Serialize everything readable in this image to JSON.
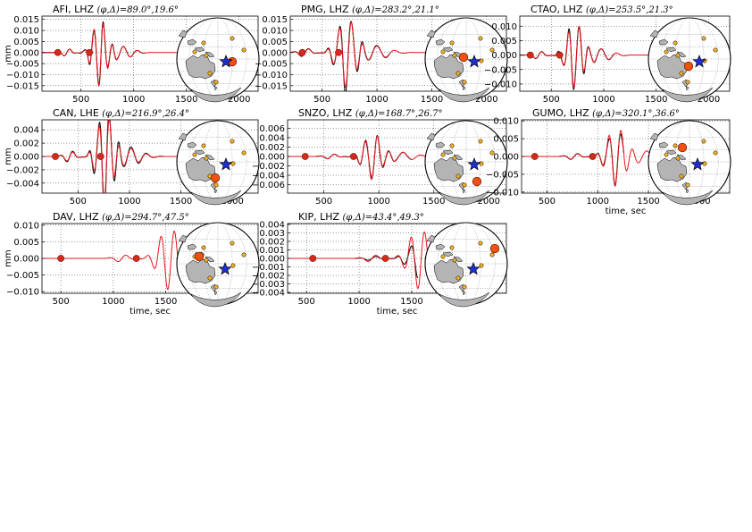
{
  "chart_data": [
    {
      "type": "line",
      "station": "AFI",
      "channel": "LHZ",
      "azimuth": "89.0",
      "distance": "19.6",
      "title_math": "(φ,Δ)=89.0°,19.6°",
      "ylabel": "mm",
      "xlabel": "",
      "xlim": [
        130,
        2180
      ],
      "ylim": [
        -0.0175,
        0.0165
      ],
      "xticks": [
        500,
        1000,
        1500,
        2000
      ],
      "yticks": [
        -0.015,
        -0.01,
        -0.005,
        0.0,
        0.005,
        0.01,
        0.015
      ],
      "ytick_labels": [
        "−0.015",
        "−0.010",
        "−0.005",
        "0.000",
        "0.005",
        "0.010",
        "0.015"
      ],
      "picks": [
        280,
        580
      ],
      "trace": {
        "onset": 600,
        "peak": 0.015,
        "period": 90,
        "end": 1090,
        "red_end": 2000,
        "black_scale": 1.0,
        "black_end": 1090
      }
    },
    {
      "type": "line",
      "station": "PMG",
      "channel": "LHZ",
      "azimuth": "283.2",
      "distance": "21.1",
      "title_math": "(φ,Δ)=283.2°,21.1°",
      "ylabel": "",
      "xlabel": "",
      "xlim": [
        210,
        2180
      ],
      "ylim": [
        -0.0175,
        0.0165
      ],
      "xticks": [
        500,
        1000,
        1500,
        2000
      ],
      "yticks": [
        -0.015,
        -0.01,
        -0.005,
        0.0,
        0.005,
        0.01,
        0.015
      ],
      "ytick_labels": [
        "−0.015",
        "−0.010",
        "−0.005",
        "0.000",
        "0.005",
        "0.010",
        "0.015"
      ],
      "picks": [
        320,
        650
      ],
      "trace": {
        "onset": 630,
        "peak": 0.016,
        "period": 110,
        "end": 1120,
        "red_end": 2000,
        "black_scale": 1.1,
        "black_end": 1120
      }
    },
    {
      "type": "line",
      "station": "CTAO",
      "channel": "LHZ",
      "azimuth": "253.5",
      "distance": "21.3",
      "title_math": "(φ,Δ)=253.5°,21.3°",
      "ylabel": "",
      "xlabel": "",
      "xlim": [
        200,
        2200
      ],
      "ylim": [
        -0.0125,
        0.0135
      ],
      "xticks": [
        500,
        1000,
        1500,
        2000
      ],
      "yticks": [
        -0.01,
        -0.005,
        0.0,
        0.005,
        0.01
      ],
      "ytick_labels": [
        "−0.010",
        "−0.005",
        "0.000",
        "0.005",
        "0.010"
      ],
      "picks": [
        300,
        580
      ],
      "trace": {
        "onset": 640,
        "peak": 0.0115,
        "period": 100,
        "end": 1150,
        "red_end": 2050,
        "black_scale": 1.05,
        "black_end": 1100
      }
    },
    {
      "type": "line",
      "station": "CAN",
      "channel": "LHE",
      "azimuth": "216.9",
      "distance": "26.4",
      "title_math": "(φ,Δ)=216.9°,26.4°",
      "ylabel": "mm",
      "xlabel": "",
      "xlim": [
        150,
        2250
      ],
      "ylim": [
        -0.0055,
        0.0055
      ],
      "xticks": [
        500,
        1000,
        1500,
        2000
      ],
      "yticks": [
        -0.004,
        -0.002,
        0.0,
        0.002,
        0.004
      ],
      "ytick_labels": [
        "−0.004",
        "−0.002",
        "0.000",
        "0.002",
        "0.004"
      ],
      "picks": [
        280,
        720
      ],
      "trace": {
        "onset": 680,
        "peak": 0.0065,
        "period": 100,
        "end": 1120,
        "red_end": 2150,
        "black_scale": 1.2,
        "black_end": 1330
      }
    },
    {
      "type": "line",
      "station": "SNZO",
      "channel": "LHZ",
      "azimuth": "168.7",
      "distance": "26.7",
      "title_math": "(φ,Δ)=168.7°,26.7°",
      "ylabel": "",
      "xlabel": "",
      "xlim": [
        170,
        2160
      ],
      "ylim": [
        -0.0078,
        0.0078
      ],
      "xticks": [
        500,
        1000,
        1500,
        2000
      ],
      "yticks": [
        -0.006,
        -0.004,
        -0.002,
        0.0,
        0.002,
        0.004,
        0.006
      ],
      "ytick_labels": [
        "−0.006",
        "−0.004",
        "−0.002",
        "0.000",
        "0.002",
        "0.004",
        "0.006"
      ],
      "picks": [
        330,
        770
      ],
      "trace": {
        "onset": 850,
        "peak": 0.005,
        "period": 110,
        "end": 1300,
        "red_end": 2000,
        "black_scale": 0.95,
        "black_end": 1300
      }
    },
    {
      "type": "line",
      "station": "GUMO",
      "channel": "LHZ",
      "azimuth": "320.1",
      "distance": "36.6",
      "title_math": "(φ,Δ)=320.1°,36.6°",
      "ylabel": "",
      "xlabel": "time, sec",
      "xlim": [
        250,
        2300
      ],
      "ylim": [
        -0.0103,
        0.0103
      ],
      "xticks": [
        500,
        1000,
        1500,
        2000
      ],
      "yticks": [
        -0.01,
        -0.005,
        0.0,
        0.005,
        0.01
      ],
      "ytick_labels": [
        "−0.010",
        "−0.005",
        "0.000",
        "0.005",
        "0.010"
      ],
      "picks": [
        380,
        950
      ],
      "trace": {
        "onset": 1080,
        "peak": 0.0085,
        "period": 120,
        "end": 1600,
        "red_end": 2200,
        "black_scale": 0.9,
        "black_end": 1260
      }
    },
    {
      "type": "line",
      "station": "DAV",
      "channel": "LHZ",
      "azimuth": "294.7",
      "distance": "47.5",
      "title_math": "(φ,Δ)=294.7°,47.5°",
      "ylabel": "mm",
      "xlabel": "time, sec",
      "xlim": [
        320,
        2380
      ],
      "ylim": [
        -0.0105,
        0.0105
      ],
      "xticks": [
        500,
        1000,
        1500,
        2000
      ],
      "yticks": [
        -0.01,
        -0.005,
        0.0,
        0.005,
        0.01
      ],
      "ytick_labels": [
        "−0.010",
        "−0.005",
        "0.000",
        "0.005",
        "0.010"
      ],
      "picks": [
        500,
        1220
      ],
      "trace": {
        "onset": 1420,
        "peak": 0.0095,
        "period": 130,
        "end": 1880,
        "red_end": 2300,
        "black_scale": 0.0,
        "black_end": 1420
      }
    },
    {
      "type": "line",
      "station": "KIP",
      "channel": "LHZ",
      "azimuth": "43.4",
      "distance": "49.3",
      "title_math": "(φ,Δ)=43.4°,49.3°",
      "ylabel": "",
      "xlabel": "time, sec",
      "xlim": [
        320,
        2400
      ],
      "ylim": [
        -0.0041,
        0.0041
      ],
      "xticks": [
        500,
        1000,
        1500,
        2000
      ],
      "yticks": [
        -0.004,
        -0.003,
        -0.002,
        -0.001,
        0.0,
        0.001,
        0.002,
        0.003,
        0.004
      ],
      "ytick_labels": [
        "−0.004",
        "−0.003",
        "−0.002",
        "−0.001",
        "0.000",
        "0.001",
        "0.002",
        "0.003",
        "0.004"
      ],
      "picks": [
        560,
        1250
      ],
      "trace": {
        "onset": 1460,
        "peak": 0.0036,
        "period": 130,
        "end": 1900,
        "red_end": 2300,
        "black_scale": 0.6,
        "black_end": 1560
      }
    }
  ],
  "colors": {
    "synthetic": "#e8141a",
    "observed": "#111111",
    "event": "#1f2fd0",
    "station_marker": "#f05010",
    "other_station": "#f2b01e",
    "land": "#b4b4b4",
    "pick": "#d42a1a"
  }
}
